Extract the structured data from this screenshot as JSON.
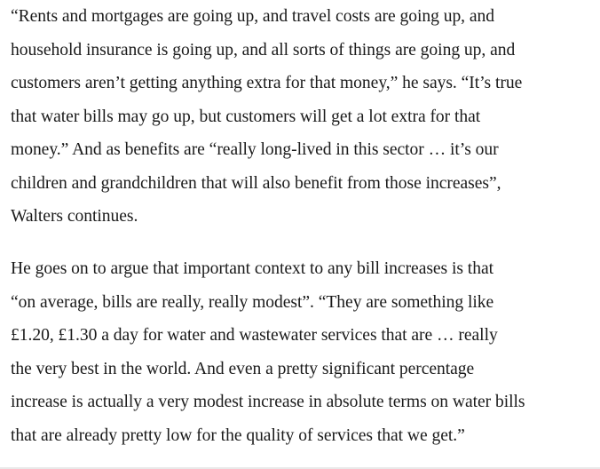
{
  "article": {
    "paragraphs": [
      {
        "lines": [
          "“Rents and mortgages are going up, and travel costs are going up, and",
          "household insurance is going up, and all sorts of things are going up, and",
          "customers aren’t getting anything extra for that money,” he says. “It’s true",
          "that water bills may go up, but customers will get a lot extra for that",
          "money.” And as benefits are “really long-lived in this sector … it’s our",
          "children and grandchildren that will also benefit from those increases”,",
          "Walters continues."
        ]
      },
      {
        "lines": [
          "He goes on to argue that important context to any bill increases is that",
          "“on average, bills are really, really modest”. “They are something like",
          "£1.20, £1.30 a day for water and wastewater services that are … really",
          "the very best in the world. And even a pretty significant percentage",
          "increase is actually a very modest increase in absolute terms on water bills",
          "that are already pretty low for the quality of services that we get.”"
        ]
      }
    ]
  }
}
